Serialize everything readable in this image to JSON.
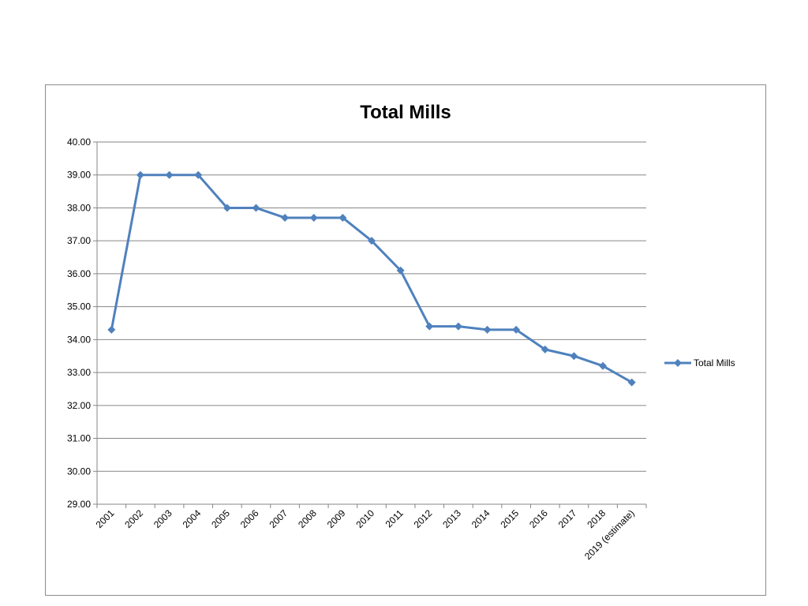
{
  "chart_data": {
    "type": "line",
    "title": "Total Mills",
    "xlabel": "",
    "ylabel": "",
    "ylim": [
      29,
      40
    ],
    "y_ticks": [
      "29.00",
      "30.00",
      "31.00",
      "32.00",
      "33.00",
      "34.00",
      "35.00",
      "36.00",
      "37.00",
      "38.00",
      "39.00",
      "40.00"
    ],
    "categories": [
      "2001",
      "2002",
      "2003",
      "2004",
      "2005",
      "2006",
      "2007",
      "2008",
      "2009",
      "2010",
      "2011",
      "2012",
      "2013",
      "2014",
      "2015",
      "2016",
      "2017",
      "2018",
      "2019 (estimate)"
    ],
    "series": [
      {
        "name": "Total Mills",
        "color": "#4f81bd",
        "marker": "diamond",
        "values": [
          34.3,
          39.0,
          39.0,
          39.0,
          38.0,
          38.0,
          37.7,
          37.7,
          37.7,
          37.0,
          36.1,
          34.4,
          34.4,
          34.3,
          34.3,
          33.7,
          33.5,
          33.2,
          32.7
        ]
      }
    ],
    "grid": true,
    "legend_position": "right"
  }
}
